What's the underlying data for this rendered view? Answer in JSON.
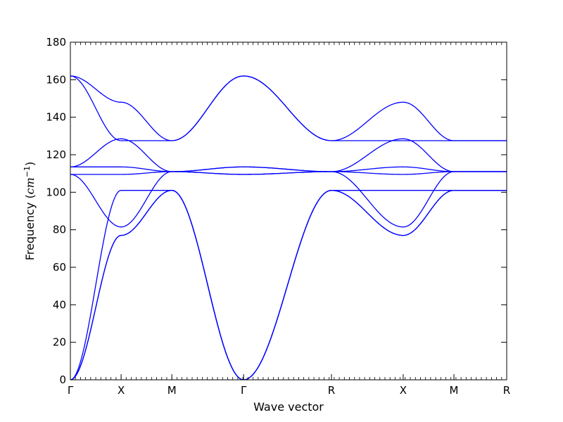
{
  "chart_data": {
    "type": "line",
    "title": "",
    "xlabel": "Wave vector",
    "ylabel": "Frequency",
    "ylabel_unit": "cm",
    "ylabel_unit_exp": "−1",
    "ylim": [
      0,
      180
    ],
    "yticks": [
      0,
      20,
      40,
      60,
      80,
      100,
      120,
      140,
      160,
      180
    ],
    "xlim": [
      0,
      8.6
    ],
    "kpoints": [
      {
        "label": "Γ",
        "x": 0
      },
      {
        "label": "X",
        "x": 1
      },
      {
        "label": "M",
        "x": 2
      },
      {
        "label": "Γ",
        "x": 3.414
      },
      {
        "label": "R",
        "x": 5.146
      },
      {
        "label": "X",
        "x": 6.56
      },
      {
        "label": "M",
        "x": 7.56
      },
      {
        "label": "R",
        "x": 8.6
      }
    ],
    "grid": false,
    "series_color": "#0000ff",
    "series": [
      {
        "values": [
          0,
          77,
          101,
          0,
          101,
          77,
          101,
          101
        ]
      },
      {
        "values": [
          0,
          77,
          101,
          0,
          101,
          77,
          101,
          101
        ]
      },
      {
        "values": [
          0,
          101,
          101,
          0,
          101,
          101,
          101,
          101
        ]
      },
      {
        "values": [
          109.5,
          81.5,
          111,
          109.5,
          111,
          81.5,
          111,
          111
        ]
      },
      {
        "values": [
          109.5,
          109.5,
          111,
          109.5,
          111,
          109.5,
          111,
          111
        ]
      },
      {
        "values": [
          113.5,
          113.5,
          111,
          113.5,
          111,
          113.5,
          111,
          111
        ]
      },
      {
        "values": [
          113.5,
          128.5,
          111,
          113.5,
          111,
          128.5,
          111,
          111
        ]
      },
      {
        "values": [
          162,
          127.5,
          127.5,
          162,
          127.5,
          127.5,
          127.5,
          127.5
        ]
      },
      {
        "values": [
          162,
          148,
          127.5,
          162,
          127.5,
          148,
          127.5,
          127.5
        ]
      }
    ]
  }
}
